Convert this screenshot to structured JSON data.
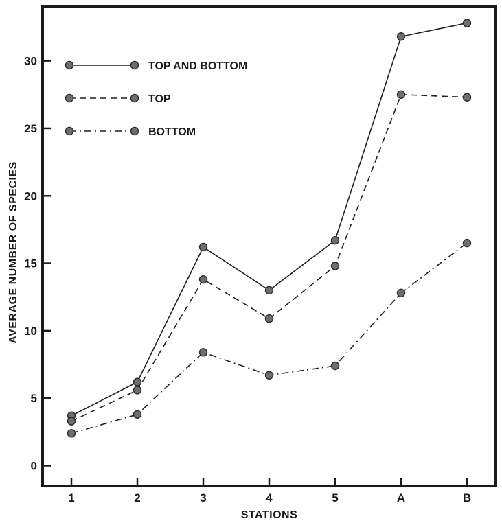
{
  "chart_data": {
    "type": "line",
    "xlabel": "STATIONS",
    "ylabel": "AVERAGE NUMBER OF SPECIES",
    "categories": [
      "1",
      "2",
      "3",
      "4",
      "5",
      "A",
      "B"
    ],
    "ylim": [
      -1.5,
      34
    ],
    "yticks": [
      0,
      5,
      10,
      15,
      20,
      25,
      30
    ],
    "grid": false,
    "legend_position": "top-left",
    "series": [
      {
        "name": "TOP AND BOTTOM",
        "style": "solid",
        "values": [
          3.7,
          6.2,
          16.2,
          13.0,
          16.7,
          31.8,
          32.8
        ]
      },
      {
        "name": "TOP",
        "style": "dashed",
        "values": [
          3.3,
          5.6,
          13.8,
          10.9,
          14.8,
          27.5,
          27.3
        ]
      },
      {
        "name": "BOTTOM",
        "style": "dash-dot",
        "values": [
          2.4,
          3.8,
          8.4,
          6.7,
          7.4,
          12.8,
          16.5
        ]
      }
    ],
    "colors": {
      "line": "#1f1f1f",
      "marker_fill": "#6e6e6e",
      "frame": "#1a1a1a"
    }
  }
}
